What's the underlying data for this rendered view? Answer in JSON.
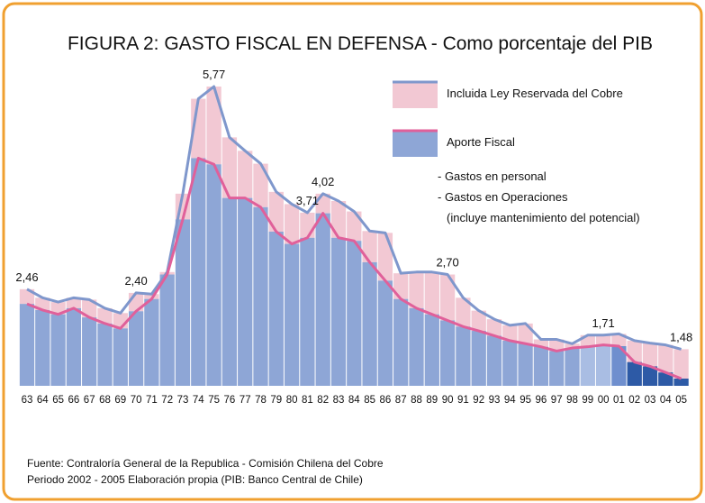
{
  "chart_data": {
    "type": "stacked_columns",
    "title": "FIGURA 2: GASTO FISCAL EN DEFENSA - Como porcentaje del PIB",
    "categories": [
      "63",
      "64",
      "65",
      "66",
      "67",
      "68",
      "69",
      "70",
      "71",
      "72",
      "73",
      "74",
      "75",
      "76",
      "77",
      "78",
      "79",
      "80",
      "81",
      "82",
      "83",
      "84",
      "85",
      "86",
      "87",
      "88",
      "89",
      "90",
      "91",
      "92",
      "93",
      "94",
      "95",
      "96",
      "97",
      "98",
      "99",
      "00",
      "01",
      "02",
      "03",
      "04",
      "05"
    ],
    "series": [
      {
        "name": "Incluida Ley Reservada del Cobre",
        "color": "#f2c8d3",
        "line_color": "#7f97cc",
        "values": [
          2.46,
          2.32,
          2.25,
          2.32,
          2.29,
          2.15,
          2.07,
          2.4,
          2.38,
          2.74,
          4.02,
          5.57,
          5.77,
          4.94,
          4.72,
          4.51,
          4.05,
          3.85,
          3.71,
          4.02,
          3.9,
          3.73,
          3.41,
          3.38,
          2.72,
          2.74,
          2.74,
          2.7,
          2.32,
          2.11,
          1.97,
          1.87,
          1.9,
          1.64,
          1.64,
          1.57,
          1.71,
          1.71,
          1.73,
          1.62,
          1.58,
          1.55,
          1.48
        ],
        "value_labels": [
          "2,46",
          null,
          null,
          null,
          null,
          null,
          null,
          "2,40",
          null,
          null,
          null,
          null,
          "5,77",
          null,
          null,
          null,
          null,
          null,
          "3,71",
          "4,02",
          null,
          null,
          null,
          null,
          null,
          null,
          null,
          "2,70",
          null,
          null,
          null,
          null,
          null,
          null,
          null,
          null,
          null,
          "1,71",
          null,
          null,
          null,
          null,
          "1,48"
        ]
      },
      {
        "name": "Aporte Fiscal",
        "color": "#8ea6d6",
        "line_color": "#e0609a",
        "colors": [
          "#8ea6d6",
          "#8ea6d6",
          "#8ea6d6",
          "#8ea6d6",
          "#8ea6d6",
          "#8ea6d6",
          "#8ea6d6",
          "#8ea6d6",
          "#8ea6d6",
          "#8ea6d6",
          "#8ea6d6",
          "#8ea6d6",
          "#8ea6d6",
          "#8ea6d6",
          "#8ea6d6",
          "#8ea6d6",
          "#8ea6d6",
          "#8ea6d6",
          "#8ea6d6",
          "#8ea6d6",
          "#8ea6d6",
          "#8ea6d6",
          "#8ea6d6",
          "#8ea6d6",
          "#8ea6d6",
          "#8ea6d6",
          "#8ea6d6",
          "#8ea6d6",
          "#8ea6d6",
          "#8ea6d6",
          "#8ea6d6",
          "#8ea6d6",
          "#8ea6d6",
          "#8ea6d6",
          "#8ea6d6",
          "#8ea6d6",
          "#a9bde3",
          "#a9bde3",
          "#6f8fce",
          "#2d5aa6",
          "#2d5aa6",
          "#2d5aa6",
          "#2d5aa6"
        ],
        "values": [
          2.22,
          2.12,
          2.05,
          2.15,
          2.0,
          1.9,
          1.82,
          2.1,
          2.3,
          2.7,
          3.6,
          4.6,
          4.5,
          3.95,
          3.95,
          3.8,
          3.4,
          3.2,
          3.3,
          3.7,
          3.3,
          3.25,
          2.9,
          2.6,
          2.3,
          2.15,
          2.05,
          1.95,
          1.85,
          1.78,
          1.7,
          1.62,
          1.57,
          1.52,
          1.45,
          1.5,
          1.52,
          1.55,
          1.53,
          1.27,
          1.2,
          1.1,
          1.0
        ]
      }
    ],
    "notes": [
      "- Gastos en personal",
      "- Gastos en Operaciones",
      "(incluye mantenimiento del potencial)"
    ],
    "source": [
      "Fuente: Contraloría General de la Republica - Comisión Chilena del Cobre",
      "Periodo 2002 - 2005 Elaboración propia (PIB: Banco Central de Chile)"
    ]
  }
}
